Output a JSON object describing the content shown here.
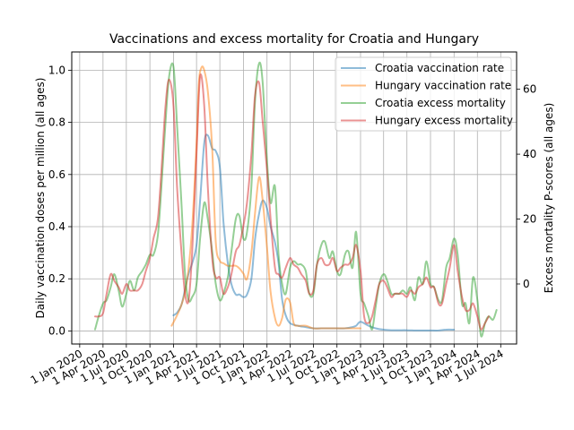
{
  "chart_data": {
    "type": "line",
    "title": "Vaccinations and excess mortality for Croatia and Hungary",
    "ylabel_left": "Daily vaccination doses per million (all ages)",
    "ylabel_right": "Excess mortality P-scores (all ages)",
    "xlabel": "",
    "x_axis_type": "date",
    "xlim": [
      "2019-12-01",
      "2024-09-01"
    ],
    "ylim_left": [
      -0.05,
      1.07
    ],
    "ylim_right": [
      -18.5,
      71.5
    ],
    "grid": true,
    "legend_placement": "top-right",
    "x_ticks": [
      "Jan 2020",
      "Apr 2020",
      "Jul 2020",
      "Oct 2020",
      "Jan 2021",
      "Apr 2021",
      "Jul 2021",
      "Oct 2021",
      "Jan 2022",
      "Apr 2022",
      "Jul 2022",
      "Oct 2022",
      "Jan 2023",
      "Apr 2023",
      "Jul 2023",
      "Oct 2023",
      "Jan 2024",
      "Apr 2024",
      "Jul 2024"
    ],
    "x_tick_dates": [
      "2020-01-01",
      "2020-04-01",
      "2020-07-01",
      "2020-10-01",
      "2021-01-01",
      "2021-04-01",
      "2021-07-01",
      "2021-10-01",
      "2022-01-01",
      "2022-04-01",
      "2022-07-01",
      "2022-10-01",
      "2023-01-01",
      "2023-04-01",
      "2023-07-01",
      "2023-10-01",
      "2024-01-01",
      "2024-04-01",
      "2024-07-01"
    ],
    "y_ticks_left": [
      "0.0",
      "0.2",
      "0.4",
      "0.6",
      "0.8",
      "1.0"
    ],
    "y_tick_values_left": [
      0,
      0.2,
      0.4,
      0.6,
      0.8,
      1.0
    ],
    "y_ticks_right": [
      "0",
      "20",
      "40",
      "60"
    ],
    "y_tick_values_right": [
      0,
      20,
      40,
      60
    ],
    "series": [
      {
        "name": "Croatia vaccination rate",
        "axis": "left",
        "color": "#1f77b4",
        "x": [
          "2021-01-01",
          "2021-01-15",
          "2021-02-01",
          "2021-02-15",
          "2021-03-01",
          "2021-03-15",
          "2021-04-01",
          "2021-04-15",
          "2021-05-01",
          "2021-05-15",
          "2021-06-01",
          "2021-06-15",
          "2021-07-01",
          "2021-07-15",
          "2021-08-01",
          "2021-08-15",
          "2021-09-01",
          "2021-09-15",
          "2021-10-01",
          "2021-10-15",
          "2021-11-01",
          "2021-11-15",
          "2021-12-01",
          "2021-12-15",
          "2022-01-01",
          "2022-01-15",
          "2022-02-01",
          "2022-02-15",
          "2022-03-01",
          "2022-03-15",
          "2022-04-01",
          "2022-05-01",
          "2022-06-01",
          "2022-07-01",
          "2022-08-01",
          "2022-09-01",
          "2022-10-01",
          "2022-11-01",
          "2022-12-01",
          "2022-12-15",
          "2023-01-01",
          "2023-02-01",
          "2023-03-01",
          "2023-04-01",
          "2023-05-01",
          "2023-06-01",
          "2023-07-01",
          "2023-08-01",
          "2023-09-01",
          "2023-10-01",
          "2023-11-01",
          "2023-12-01",
          "2024-01-01"
        ],
        "y": [
          0.06,
          0.07,
          0.1,
          0.16,
          0.22,
          0.26,
          0.33,
          0.5,
          0.72,
          0.75,
          0.7,
          0.69,
          0.63,
          0.42,
          0.26,
          0.18,
          0.14,
          0.14,
          0.13,
          0.14,
          0.2,
          0.35,
          0.45,
          0.5,
          0.47,
          0.4,
          0.34,
          0.26,
          0.12,
          0.06,
          0.03,
          0.02,
          0.015,
          0.01,
          0.01,
          0.01,
          0.01,
          0.01,
          0.015,
          0.02,
          0.035,
          0.02,
          0.01,
          0.005,
          0.003,
          0.003,
          0.003,
          0.002,
          0.002,
          0.002,
          0.002,
          0.005,
          0.005
        ]
      },
      {
        "name": "Hungary vaccination rate",
        "axis": "left",
        "color": "#ff7f0e",
        "x": [
          "2020-12-25",
          "2021-01-15",
          "2021-02-01",
          "2021-02-15",
          "2021-03-01",
          "2021-03-15",
          "2021-04-01",
          "2021-04-10",
          "2021-04-20",
          "2021-05-01",
          "2021-05-15",
          "2021-06-01",
          "2021-06-15",
          "2021-07-01",
          "2021-07-15",
          "2021-08-01",
          "2021-08-15",
          "2021-09-01",
          "2021-09-15",
          "2021-10-01",
          "2021-10-15",
          "2021-11-01",
          "2021-11-15",
          "2021-12-01",
          "2021-12-15",
          "2022-01-01",
          "2022-01-15",
          "2022-02-01",
          "2022-02-15",
          "2022-03-01",
          "2022-03-15",
          "2022-04-01",
          "2022-04-15",
          "2022-05-01",
          "2022-06-01",
          "2022-07-01",
          "2022-08-01",
          "2022-09-01",
          "2022-10-01",
          "2022-11-01",
          "2022-12-01",
          "2023-01-01"
        ],
        "y": [
          0.02,
          0.06,
          0.1,
          0.15,
          0.24,
          0.4,
          0.72,
          0.95,
          1.01,
          1.0,
          0.92,
          0.7,
          0.34,
          0.27,
          0.26,
          0.25,
          0.25,
          0.25,
          0.24,
          0.22,
          0.2,
          0.3,
          0.45,
          0.59,
          0.5,
          0.32,
          0.15,
          0.05,
          0.02,
          0.05,
          0.12,
          0.11,
          0.03,
          0.02,
          0.02,
          0.01,
          0.01,
          0.01,
          0.01,
          0.01,
          0.01,
          0.01
        ]
      },
      {
        "name": "Croatia excess mortality",
        "axis": "right",
        "color": "#2ca02c",
        "x": [
          "2020-03-01",
          "2020-03-15",
          "2020-04-01",
          "2020-04-15",
          "2020-05-01",
          "2020-05-15",
          "2020-06-01",
          "2020-06-15",
          "2020-07-01",
          "2020-07-15",
          "2020-08-01",
          "2020-08-15",
          "2020-09-01",
          "2020-09-15",
          "2020-10-01",
          "2020-10-15",
          "2020-11-01",
          "2020-11-15",
          "2020-12-01",
          "2020-12-15",
          "2021-01-01",
          "2021-01-15",
          "2021-02-01",
          "2021-02-15",
          "2021-03-01",
          "2021-03-15",
          "2021-04-01",
          "2021-04-15",
          "2021-05-01",
          "2021-05-15",
          "2021-06-01",
          "2021-06-15",
          "2021-07-01",
          "2021-07-15",
          "2021-08-01",
          "2021-08-15",
          "2021-09-01",
          "2021-09-15",
          "2021-10-01",
          "2021-10-15",
          "2021-11-01",
          "2021-11-15",
          "2021-12-01",
          "2021-12-15",
          "2022-01-01",
          "2022-01-15",
          "2022-02-01",
          "2022-02-15",
          "2022-03-01",
          "2022-03-15",
          "2022-04-01",
          "2022-04-15",
          "2022-05-01",
          "2022-05-15",
          "2022-06-01",
          "2022-06-15",
          "2022-07-01",
          "2022-07-15",
          "2022-08-01",
          "2022-08-15",
          "2022-09-01",
          "2022-09-15",
          "2022-10-01",
          "2022-10-15",
          "2022-11-01",
          "2022-11-15",
          "2022-12-01",
          "2022-12-15",
          "2023-01-01",
          "2023-01-15",
          "2023-02-01",
          "2023-02-15",
          "2023-03-01",
          "2023-03-15",
          "2023-04-01",
          "2023-04-15",
          "2023-05-01",
          "2023-05-15",
          "2023-06-01",
          "2023-06-15",
          "2023-07-01",
          "2023-07-15",
          "2023-08-01",
          "2023-08-15",
          "2023-09-01",
          "2023-09-15",
          "2023-10-01",
          "2023-10-15",
          "2023-11-01",
          "2023-11-15",
          "2023-12-01",
          "2023-12-15",
          "2024-01-01",
          "2024-01-15",
          "2024-02-01",
          "2024-02-15",
          "2024-03-01",
          "2024-03-15",
          "2024-04-01",
          "2024-04-15",
          "2024-05-01",
          "2024-05-15",
          "2024-06-01",
          "2024-06-15"
        ],
        "y": [
          -14,
          -10,
          -6,
          -5,
          -1,
          3,
          -2,
          -7,
          -3,
          1,
          -2,
          2,
          4,
          6,
          9,
          9,
          15,
          30,
          50,
          64,
          67,
          49,
          25,
          3,
          -5,
          -4,
          0,
          14,
          25,
          20,
          10,
          0,
          -5,
          -3,
          2,
          10,
          20,
          21,
          14,
          16,
          30,
          56,
          68,
          62,
          38,
          25,
          30,
          9,
          0,
          -3,
          5,
          7,
          6,
          6,
          4,
          -3,
          -3,
          6,
          12,
          13,
          8,
          10,
          4,
          3,
          9,
          10,
          5,
          16,
          -3,
          -6,
          -10,
          -14,
          -7,
          0,
          3,
          1,
          -3,
          -3,
          -3,
          -2,
          -3,
          -1,
          -5,
          2,
          0,
          7,
          0,
          -1,
          -5,
          -5,
          5,
          8,
          14,
          9,
          -6,
          -6,
          -12,
          2,
          -5,
          -16,
          -12,
          -10,
          -11,
          -8
        ]
      },
      {
        "name": "Hungary excess mortality",
        "axis": "right",
        "color": "#d62728",
        "x": [
          "2020-03-01",
          "2020-03-15",
          "2020-04-01",
          "2020-04-15",
          "2020-05-01",
          "2020-05-15",
          "2020-06-01",
          "2020-06-15",
          "2020-07-01",
          "2020-07-15",
          "2020-08-01",
          "2020-08-15",
          "2020-09-01",
          "2020-09-15",
          "2020-10-01",
          "2020-10-15",
          "2020-11-01",
          "2020-11-15",
          "2020-12-01",
          "2020-12-15",
          "2021-01-01",
          "2021-01-15",
          "2021-02-01",
          "2021-02-15",
          "2021-03-01",
          "2021-03-15",
          "2021-04-01",
          "2021-04-15",
          "2021-05-01",
          "2021-05-15",
          "2021-06-01",
          "2021-06-15",
          "2021-07-01",
          "2021-07-15",
          "2021-08-01",
          "2021-08-15",
          "2021-09-01",
          "2021-09-15",
          "2021-10-01",
          "2021-10-15",
          "2021-11-01",
          "2021-11-15",
          "2021-12-01",
          "2021-12-15",
          "2022-01-01",
          "2022-01-15",
          "2022-02-01",
          "2022-02-15",
          "2022-03-01",
          "2022-03-15",
          "2022-04-01",
          "2022-04-15",
          "2022-05-01",
          "2022-05-15",
          "2022-06-01",
          "2022-06-15",
          "2022-07-01",
          "2022-07-15",
          "2022-08-01",
          "2022-08-15",
          "2022-09-01",
          "2022-09-15",
          "2022-10-01",
          "2022-10-15",
          "2022-11-01",
          "2022-11-15",
          "2022-12-01",
          "2022-12-15",
          "2023-01-01",
          "2023-01-15",
          "2023-02-01",
          "2023-02-15",
          "2023-03-01",
          "2023-03-15",
          "2023-04-01",
          "2023-04-15",
          "2023-05-01",
          "2023-05-15",
          "2023-06-01",
          "2023-06-15",
          "2023-07-01",
          "2023-07-15",
          "2023-08-01",
          "2023-08-15",
          "2023-09-01",
          "2023-09-15",
          "2023-10-01",
          "2023-10-15",
          "2023-11-01",
          "2023-11-15",
          "2023-12-01",
          "2023-12-15",
          "2024-01-01",
          "2024-01-15",
          "2024-02-01",
          "2024-02-15",
          "2024-03-01",
          "2024-03-15",
          "2024-04-01",
          "2024-04-15",
          "2024-05-01",
          "2024-05-15"
        ],
        "y": [
          -10,
          -10,
          -9,
          -3,
          3,
          1,
          -1,
          -3,
          0,
          -2,
          -2,
          -2,
          0,
          4,
          8,
          14,
          20,
          35,
          55,
          63,
          55,
          30,
          10,
          -3,
          -5,
          10,
          40,
          64,
          55,
          30,
          8,
          2,
          2,
          -3,
          -1,
          3,
          10,
          12,
          18,
          25,
          40,
          58,
          62,
          50,
          35,
          20,
          5,
          3,
          2,
          5,
          8,
          6,
          5,
          3,
          1,
          -3,
          -2,
          6,
          8,
          6,
          6,
          8,
          4,
          5,
          6,
          6,
          8,
          12,
          4,
          -10,
          -12,
          -10,
          -5,
          0,
          1,
          -1,
          -4,
          -3,
          -3,
          -3,
          -4,
          -2,
          -3,
          -1,
          0,
          2,
          -1,
          -1,
          -6,
          -6,
          0,
          5,
          12,
          4,
          -4,
          -8,
          -8,
          -6,
          -10,
          -14,
          -12,
          -10
        ]
      }
    ]
  }
}
